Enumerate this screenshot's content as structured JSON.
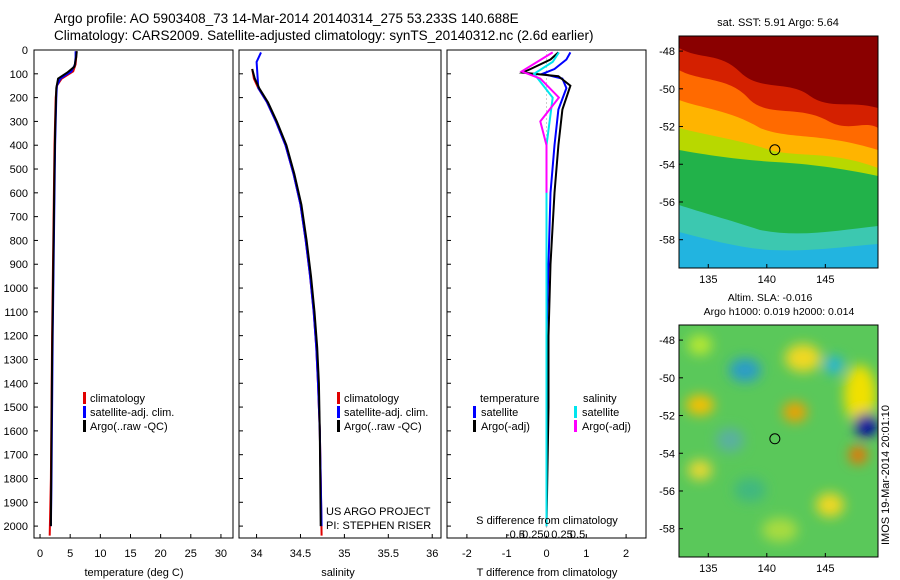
{
  "header": {
    "title_line1": "Argo profile: AO 5903408_73 14-Mar-2014 20140314_275 53.233S 140.688E",
    "title_line2": "Climatology: CARS2009. Satellite-adjusted climatology: synTS_20140312.nc (2.6d earlier)"
  },
  "colors": {
    "climatology": "#e00000",
    "satellite": "#0000ff",
    "argo": "#000000",
    "sal_satellite": "#00e5ee",
    "sal_argo": "#ff00ff"
  },
  "depth_axis": {
    "ylim": [
      0,
      2050
    ],
    "ticks": [
      0,
      100,
      200,
      300,
      400,
      500,
      600,
      700,
      800,
      900,
      1000,
      1100,
      1200,
      1300,
      1400,
      1500,
      1600,
      1700,
      1800,
      1900,
      2000
    ]
  },
  "chart_data": [
    {
      "id": "temperature",
      "type": "line",
      "xlabel": "temperature (deg C)",
      "xlim": [
        -1,
        32
      ],
      "xticks": [
        0,
        5,
        10,
        15,
        20,
        25,
        30
      ],
      "legend": [
        "climatology",
        "satellite-adj. clim.",
        "Argo(..raw -QC)"
      ],
      "series": [
        {
          "name": "climatology",
          "x": [
            6.0,
            6.0,
            5.9,
            5.5,
            3.6,
            2.8,
            2.6,
            2.5,
            2.4,
            2.3,
            2.2,
            2.1,
            2.0,
            1.9,
            1.8,
            1.6
          ],
          "depth": [
            5,
            30,
            60,
            90,
            120,
            150,
            200,
            300,
            400,
            600,
            800,
            1000,
            1200,
            1500,
            1800,
            2040
          ]
        },
        {
          "name": "satellite-adj. clim.",
          "x": [
            5.9,
            5.9,
            5.8,
            5.2,
            3.4,
            2.8,
            2.7,
            2.6,
            2.5,
            2.4,
            2.3,
            2.2,
            2.1,
            2.0,
            1.9,
            1.8
          ],
          "depth": [
            5,
            30,
            60,
            90,
            120,
            150,
            200,
            300,
            400,
            600,
            800,
            1000,
            1200,
            1500,
            1800,
            2000
          ]
        },
        {
          "name": "Argo(..raw -QC)",
          "x": [
            6.1,
            6.0,
            5.7,
            4.5,
            3.0,
            2.7,
            2.6,
            2.5,
            2.4,
            2.3,
            2.2,
            2.1,
            2.0,
            1.9,
            1.8
          ],
          "depth": [
            5,
            30,
            70,
            95,
            120,
            160,
            250,
            350,
            500,
            700,
            900,
            1100,
            1300,
            1600,
            2000
          ]
        }
      ]
    },
    {
      "id": "salinity",
      "type": "line",
      "xlabel": "salinity",
      "xlim": [
        33.8,
        36.1
      ],
      "xticks": [
        34,
        34.5,
        35,
        35.5,
        36
      ],
      "legend": [
        "climatology",
        "satellite-adj. clim.",
        "Argo(..raw -QC)"
      ],
      "annotation": [
        "US ARGO PROJECT",
        "PI: STEPHEN RISER"
      ],
      "series": [
        {
          "name": "climatology",
          "x": [
            33.95,
            33.97,
            34.02,
            34.12,
            34.22,
            34.33,
            34.42,
            34.5,
            34.56,
            34.61,
            34.65,
            34.68,
            34.7,
            34.72,
            34.73,
            34.74
          ],
          "depth": [
            80,
            120,
            160,
            220,
            300,
            400,
            520,
            650,
            800,
            950,
            1100,
            1250,
            1400,
            1600,
            1800,
            2040
          ]
        },
        {
          "name": "satellite-adj. clim.",
          "x": [
            34.05,
            34.0,
            34.02,
            34.12,
            34.22,
            34.33,
            34.42,
            34.5,
            34.56,
            34.61,
            34.65,
            34.68,
            34.7,
            34.72,
            34.73,
            34.74
          ],
          "depth": [
            10,
            50,
            160,
            220,
            300,
            400,
            520,
            650,
            800,
            950,
            1100,
            1250,
            1400,
            1600,
            1800,
            2000
          ]
        },
        {
          "name": "Argo(..raw -QC)",
          "x": [
            33.95,
            33.98,
            34.03,
            34.13,
            34.23,
            34.34,
            34.43,
            34.51,
            34.57,
            34.62,
            34.66,
            34.69,
            34.71,
            34.72,
            34.73
          ],
          "depth": [
            80,
            120,
            160,
            220,
            300,
            400,
            520,
            650,
            800,
            950,
            1100,
            1250,
            1400,
            1600,
            2000
          ]
        }
      ]
    },
    {
      "id": "differences",
      "type": "line",
      "xlabel": "T difference from climatology",
      "xlim": [
        -2.5,
        2.5
      ],
      "xticks": [
        -2,
        -1,
        0,
        1,
        2
      ],
      "top_label": "S difference from climatology",
      "top_ticks": [
        -0.5,
        -0.25,
        0,
        0.25,
        0.5
      ],
      "legend_temperature_title": "temperature",
      "legend_salinity_title": "salinity",
      "legend_temperature": [
        "satellite",
        "Argo(-adj)"
      ],
      "legend_salinity": [
        "satellite",
        "Argo(-adj)"
      ],
      "series": [
        {
          "name": "T satellite",
          "x": [
            0.6,
            0.5,
            0.2,
            -0.1,
            0.4,
            0.5,
            0.3,
            0.2,
            0.1,
            0.05,
            0.0,
            0.0,
            0.0,
            0.0
          ],
          "depth": [
            10,
            40,
            80,
            100,
            120,
            160,
            250,
            400,
            600,
            900,
            1200,
            1500,
            1800,
            2000
          ]
        },
        {
          "name": "T Argo(-adj)",
          "x": [
            0.3,
            0.1,
            -0.4,
            -0.6,
            0.3,
            0.6,
            0.4,
            0.3,
            0.2,
            0.1,
            0.05,
            0.05,
            0.02,
            0.0
          ],
          "depth": [
            10,
            40,
            80,
            95,
            110,
            150,
            250,
            400,
            600,
            900,
            1200,
            1500,
            1800,
            2000
          ]
        },
        {
          "name": "S satellite",
          "x": [
            0.2,
            0.1,
            -0.2,
            0.1,
            0.0,
            0.0,
            0.0,
            0.0
          ],
          "depth": [
            10,
            50,
            100,
            200,
            400,
            800,
            1400,
            2000
          ]
        },
        {
          "name": "S Argo(-adj)",
          "x": [
            0.1,
            -0.4,
            -0.1,
            0.2,
            -0.1,
            0.0,
            0.0
          ],
          "depth": [
            10,
            90,
            120,
            200,
            300,
            400,
            600
          ]
        }
      ]
    },
    {
      "id": "sst-map",
      "type": "heatmap",
      "title": "sat. SST: 5.91  Argo: 5.64",
      "xticks": [
        135,
        140,
        145
      ],
      "yticks": [
        -48,
        -50,
        -52,
        -54,
        -56,
        -58
      ],
      "xlim": [
        132.5,
        149.5
      ],
      "ylim": [
        -59.5,
        -47.2
      ],
      "marker": {
        "lon": 140.688,
        "lat": -53.233
      }
    },
    {
      "id": "sla-map",
      "type": "heatmap",
      "title_line1": "Altim. SLA: -0.016",
      "title_line2": "Argo h1000: 0.019 h2000: 0.014",
      "xticks": [
        135,
        140,
        145
      ],
      "yticks": [
        -48,
        -50,
        -52,
        -54,
        -56,
        -58
      ],
      "xlim": [
        132.5,
        149.5
      ],
      "ylim": [
        -59.5,
        -47.2
      ],
      "marker": {
        "lon": 140.688,
        "lat": -53.233
      }
    }
  ],
  "watermark": "IMOS 19-Mar-2014 20:01:10"
}
